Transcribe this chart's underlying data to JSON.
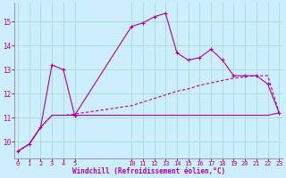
{
  "xlabel": "Windchill (Refroidissement éolien,°C)",
  "bg_color": "#cceeff",
  "grid_color": "#aaddcc",
  "line_color": "#aa00aa",
  "ylim": [
    9.3,
    15.8
  ],
  "yticks": [
    10,
    11,
    12,
    13,
    14,
    15
  ],
  "xlim": [
    -0.3,
    23.3
  ],
  "x_positions": [
    0,
    1,
    2,
    3,
    4,
    5,
    10,
    11,
    12,
    13,
    14,
    15,
    16,
    17,
    18,
    19,
    20,
    21,
    22,
    23
  ],
  "x_labels": [
    "0",
    "1",
    "2",
    "3",
    "4",
    "5",
    "10",
    "11",
    "12",
    "13",
    "14",
    "15",
    "16",
    "17",
    "18",
    "19",
    "20",
    "21",
    "22",
    "23"
  ],
  "line1_x": [
    0,
    1,
    2,
    3,
    4,
    5,
    10,
    11,
    12,
    13,
    14,
    15,
    16,
    17,
    18,
    19,
    20,
    21,
    22,
    23
  ],
  "line1_y": [
    9.6,
    9.9,
    10.6,
    13.2,
    13.0,
    11.1,
    14.8,
    14.95,
    15.2,
    15.35,
    13.7,
    13.4,
    13.5,
    13.85,
    13.4,
    12.75,
    12.75,
    12.75,
    12.4,
    11.2
  ],
  "line2_x": [
    0,
    1,
    2,
    3,
    4,
    5,
    10,
    11,
    12,
    13,
    14,
    15,
    16,
    17,
    18,
    19,
    20,
    21,
    22,
    23
  ],
  "line2_y": [
    9.6,
    9.9,
    10.6,
    11.1,
    11.1,
    11.1,
    11.1,
    11.1,
    11.1,
    11.1,
    11.1,
    11.1,
    11.1,
    11.1,
    11.1,
    11.1,
    11.1,
    11.1,
    11.1,
    11.2
  ],
  "line3_x": [
    0,
    1,
    2,
    3,
    4,
    5,
    10,
    11,
    12,
    13,
    14,
    15,
    16,
    17,
    18,
    19,
    20,
    21,
    22,
    23
  ],
  "line3_y": [
    9.6,
    9.9,
    10.6,
    11.1,
    11.1,
    11.15,
    11.5,
    11.65,
    11.8,
    11.95,
    12.1,
    12.2,
    12.35,
    12.45,
    12.55,
    12.65,
    12.7,
    12.75,
    12.75,
    11.2
  ]
}
